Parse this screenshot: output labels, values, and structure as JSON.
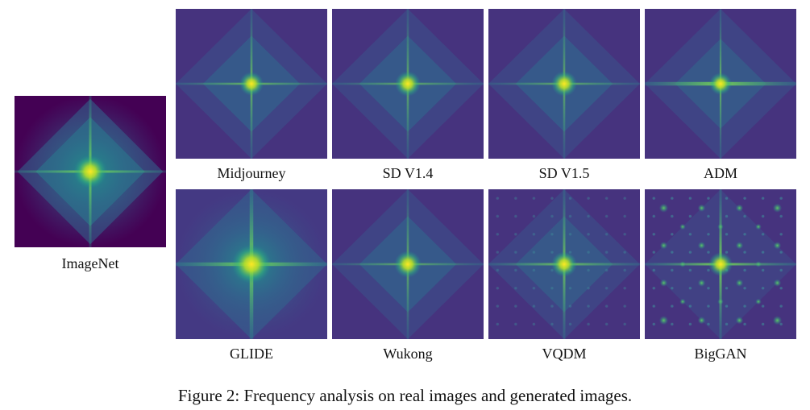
{
  "figure": {
    "caption": "Figure 2: Frequency analysis on real images and generated images.",
    "colormap": [
      "#440154",
      "#3b528b",
      "#21918c",
      "#5ec962",
      "#fde725"
    ],
    "real": {
      "label": "ImageNet"
    },
    "panels": [
      {
        "label": "Midjourney"
      },
      {
        "label": "SD V1.4"
      },
      {
        "label": "SD V1.5"
      },
      {
        "label": "ADM"
      },
      {
        "label": "GLIDE"
      },
      {
        "label": "Wukong"
      },
      {
        "label": "VQDM"
      },
      {
        "label": "BigGAN"
      }
    ]
  }
}
